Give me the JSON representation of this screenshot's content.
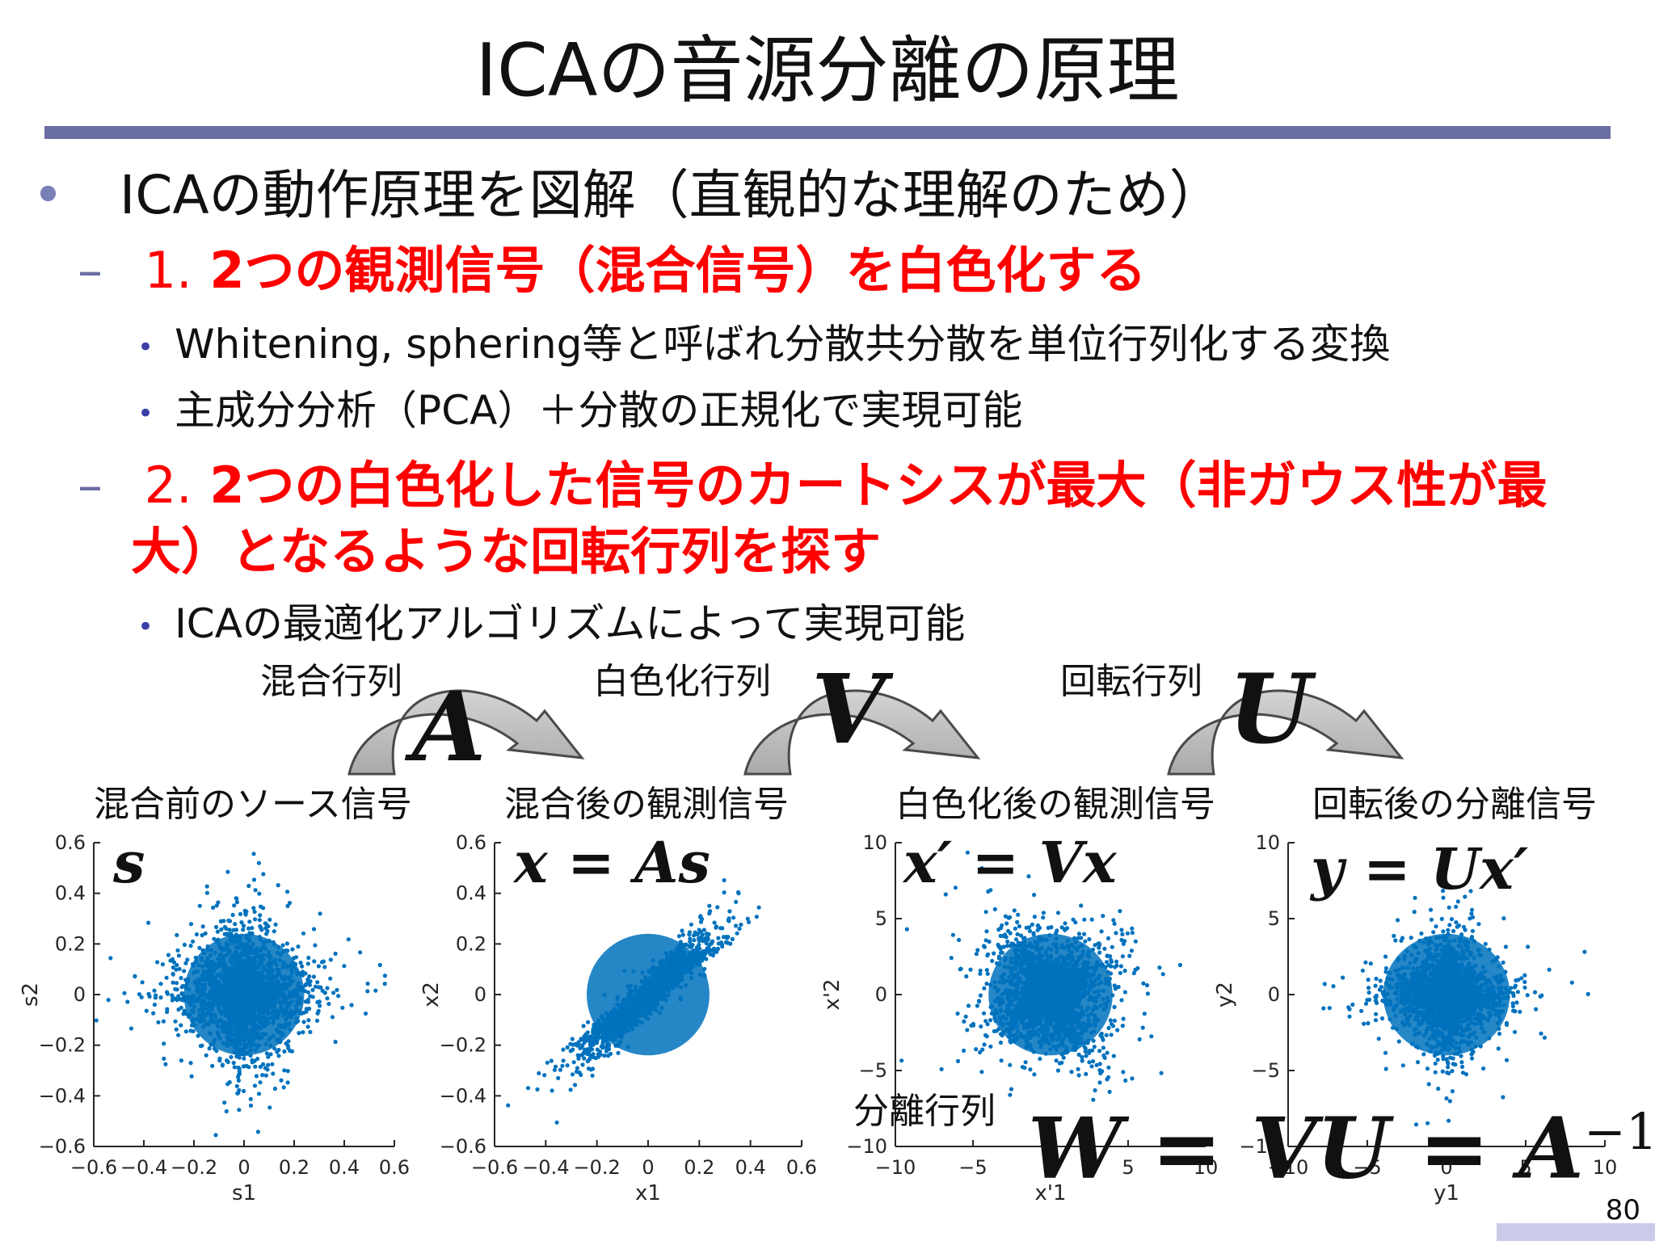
{
  "title": "ICAの音源分離の原理",
  "bullets": {
    "main": "ICAの動作原理を図解（直観的な理解のため）",
    "step1_num": "1.",
    "step1": "2つの観測信号（混合信号）を白色化する",
    "step1_sub1": "Whitening, sphering等と呼ばれ分散共分散を単位行列化する変換",
    "step1_sub2": "主成分分析（PCA）＋分散の正規化で実現可能",
    "step2_num": "2.",
    "step2_line1": "2つの白色化した信号のカートシスが最大（非ガウス性が最",
    "step2_line2": "大）となるような回転行列を探す",
    "step2_sub1": "ICAの最適化アルゴリズムによって実現可能"
  },
  "diagram": {
    "arrows": [
      {
        "label": "混合行列",
        "symbol": "A"
      },
      {
        "label": "白色化行列",
        "symbol": "V"
      },
      {
        "label": "回転行列",
        "symbol": "U"
      }
    ],
    "panel_titles": [
      "混合前のソース信号",
      "混合後の観測信号",
      "白色化後の観測信号",
      "回転後の分離信号"
    ],
    "equations": [
      "s",
      "x = As",
      "x′ = Vx",
      "y = Ux′"
    ],
    "separation_label": "分離行列",
    "separation_formula_main": "W = VU = A",
    "separation_formula_sup": "−1"
  },
  "chart_data": [
    {
      "type": "scatter",
      "xlabel": "s1",
      "ylabel": "s2",
      "xlim": [
        -0.6,
        0.6
      ],
      "ylim": [
        -0.6,
        0.6
      ],
      "xticks": [
        "−0.6",
        "−0.4",
        "−0.2",
        "0",
        "0.2",
        "0.4",
        "0.6"
      ],
      "yticks": [
        "0.6",
        "0.4",
        "0.2",
        "0",
        "−0.2",
        "−0.4",
        "−0.6"
      ],
      "color": "#0072bd"
    },
    {
      "type": "scatter",
      "xlabel": "x1",
      "ylabel": "x2",
      "xlim": [
        -0.6,
        0.6
      ],
      "ylim": [
        -0.6,
        0.6
      ],
      "xticks": [
        "−0.6",
        "−0.4",
        "−0.2",
        "0",
        "0.2",
        "0.4",
        "0.6"
      ],
      "yticks": [
        "0.6",
        "0.4",
        "0.2",
        "0",
        "−0.2",
        "−0.4",
        "−0.6"
      ],
      "color": "#0072bd"
    },
    {
      "type": "scatter",
      "xlabel": "x'1",
      "ylabel": "x'2",
      "xlim": [
        -10,
        10
      ],
      "ylim": [
        -10,
        10
      ],
      "xticks": [
        "−10",
        "−5",
        "0",
        "5",
        "10"
      ],
      "yticks": [
        "10",
        "5",
        "0",
        "−5",
        "−10"
      ],
      "color": "#0072bd"
    },
    {
      "type": "scatter",
      "xlabel": "y1",
      "ylabel": "y2",
      "xlim": [
        -10,
        10
      ],
      "ylim": [
        -10,
        10
      ],
      "xticks": [
        "−10",
        "−5",
        "0",
        "5",
        "10"
      ],
      "yticks": [
        "10",
        "5",
        "0",
        "−5",
        "−10"
      ],
      "color": "#0072bd"
    }
  ],
  "page_number": "80",
  "colors": {
    "accent": "#6b6ea2",
    "emphasis": "#ff0000",
    "scatter": "#0072bd"
  }
}
